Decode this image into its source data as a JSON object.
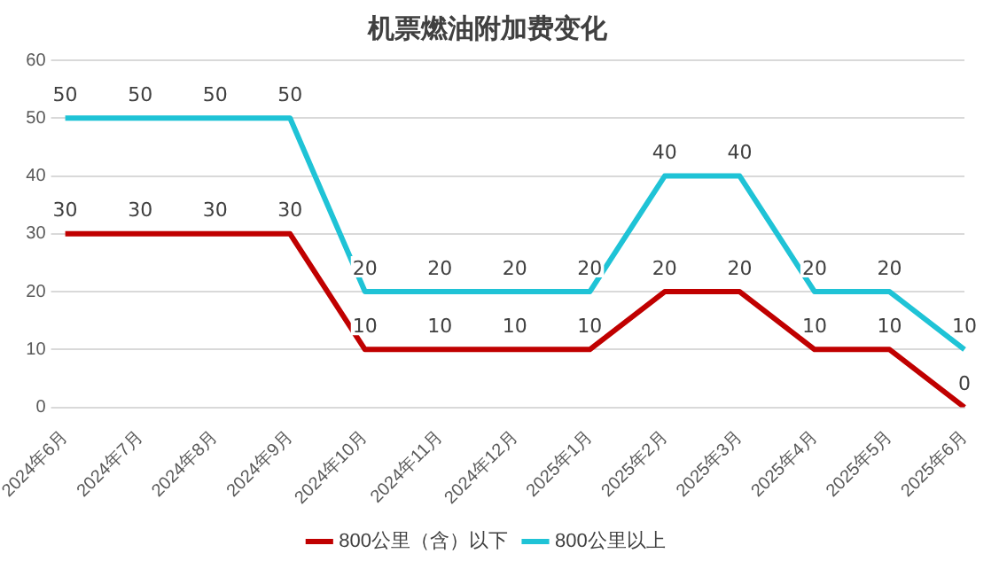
{
  "chart_data": {
    "type": "line",
    "title": "机票燃油附加费变化",
    "categories": [
      "2024年6月",
      "2024年7月",
      "2024年8月",
      "2024年9月",
      "2024年10月",
      "2024年11月",
      "2024年12月",
      "2025年1月",
      "2025年2月",
      "2025年3月",
      "2025年4月",
      "2025年5月",
      "2025年6月"
    ],
    "series": [
      {
        "name": "800公里（含）以下",
        "color": "#c00000",
        "values": [
          30,
          30,
          30,
          30,
          10,
          10,
          10,
          10,
          20,
          20,
          10,
          10,
          0
        ]
      },
      {
        "name": "800公里以上",
        "color": "#1fc3d6",
        "values": [
          50,
          50,
          50,
          50,
          20,
          20,
          20,
          20,
          40,
          40,
          20,
          20,
          10
        ]
      }
    ],
    "ylim": [
      0,
      60
    ],
    "yticks": [
      0,
      10,
      20,
      30,
      40,
      50,
      60
    ],
    "grid": "y",
    "legend": "bottom",
    "data_labels": true,
    "marker": "none",
    "line_style": "solid"
  }
}
